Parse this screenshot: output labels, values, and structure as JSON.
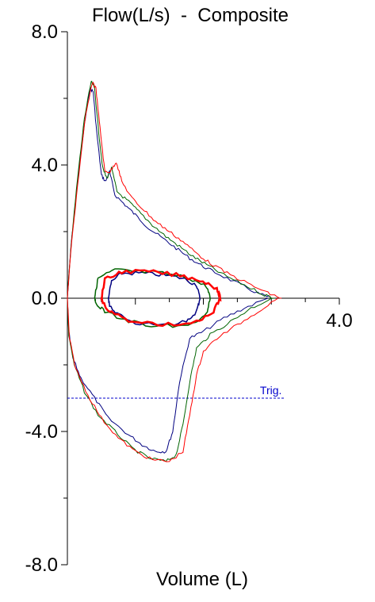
{
  "chart_data": {
    "type": "line",
    "title": "Flow(L/s)  -  Composite",
    "xlabel": "Volume (L)",
    "ylabel": "",
    "xlim": [
      0,
      4.0
    ],
    "ylim": [
      -8.0,
      8.0
    ],
    "y_tick_labels": [
      "8.0",
      "4.0",
      "0.0",
      "-4.0",
      "-8.0"
    ],
    "y_tick_values": [
      8.0,
      4.0,
      0.0,
      -4.0,
      -8.0
    ],
    "x_tick_label": "4.0",
    "x_tick_value": 4.0,
    "grid": false,
    "trigger_line": {
      "label": "Trig.",
      "y": -3.0,
      "x_end": 3.2,
      "color": "#0000cc"
    },
    "colors": {
      "axis": "#000000",
      "trigger": "#0000cc"
    },
    "series": [
      {
        "color": "#000080",
        "expiratory": [
          [
            0,
            0
          ],
          [
            0.05,
            1.5
          ],
          [
            0.15,
            3.5
          ],
          [
            0.25,
            5.2
          ],
          [
            0.33,
            6.3
          ],
          [
            0.38,
            6.2
          ],
          [
            0.43,
            5.0
          ],
          [
            0.5,
            3.7
          ],
          [
            0.56,
            3.5
          ],
          [
            0.62,
            3.8
          ],
          [
            0.7,
            3.1
          ],
          [
            0.85,
            2.8
          ],
          [
            1.0,
            2.5
          ],
          [
            1.2,
            2.1
          ],
          [
            1.4,
            1.8
          ],
          [
            1.6,
            1.5
          ],
          [
            1.8,
            1.2
          ],
          [
            2.0,
            0.95
          ],
          [
            2.2,
            0.75
          ],
          [
            2.5,
            0.45
          ],
          [
            2.8,
            0.15
          ],
          [
            3.0,
            0.0
          ]
        ],
        "inspiratory": [
          [
            0,
            0
          ],
          [
            0.02,
            -1.0
          ],
          [
            0.08,
            -1.8
          ],
          [
            0.2,
            -2.4
          ],
          [
            0.4,
            -3.0
          ],
          [
            0.6,
            -3.6
          ],
          [
            0.9,
            -4.1
          ],
          [
            1.1,
            -4.4
          ],
          [
            1.3,
            -4.6
          ],
          [
            1.45,
            -4.6
          ],
          [
            1.55,
            -4.0
          ],
          [
            1.65,
            -2.5
          ],
          [
            1.8,
            -1.2
          ],
          [
            2.0,
            -1.0
          ],
          [
            2.3,
            -0.6
          ],
          [
            2.6,
            -0.3
          ],
          [
            2.95,
            0.0
          ]
        ],
        "tidal": [
          [
            0.6,
            0.0
          ],
          [
            0.65,
            0.5
          ],
          [
            0.8,
            0.75
          ],
          [
            1.1,
            0.75
          ],
          [
            1.4,
            0.7
          ],
          [
            1.7,
            0.6
          ],
          [
            1.9,
            0.4
          ],
          [
            1.95,
            0.0
          ],
          [
            1.9,
            -0.4
          ],
          [
            1.75,
            -0.7
          ],
          [
            1.4,
            -0.8
          ],
          [
            1.0,
            -0.75
          ],
          [
            0.75,
            -0.5
          ],
          [
            0.62,
            -0.2
          ],
          [
            0.6,
            0.0
          ]
        ]
      },
      {
        "color": "#006400",
        "expiratory": [
          [
            0,
            0
          ],
          [
            0.05,
            1.5
          ],
          [
            0.15,
            3.6
          ],
          [
            0.25,
            5.4
          ],
          [
            0.35,
            6.5
          ],
          [
            0.4,
            6.3
          ],
          [
            0.46,
            5.0
          ],
          [
            0.52,
            3.9
          ],
          [
            0.58,
            3.6
          ],
          [
            0.65,
            3.9
          ],
          [
            0.73,
            3.2
          ],
          [
            0.9,
            2.9
          ],
          [
            1.05,
            2.6
          ],
          [
            1.25,
            2.2
          ],
          [
            1.45,
            1.85
          ],
          [
            1.65,
            1.55
          ],
          [
            1.85,
            1.25
          ],
          [
            2.05,
            1.0
          ],
          [
            2.3,
            0.7
          ],
          [
            2.6,
            0.4
          ],
          [
            2.9,
            0.1
          ],
          [
            3.05,
            0.0
          ]
        ],
        "inspiratory": [
          [
            0,
            0
          ],
          [
            0.02,
            -1.1
          ],
          [
            0.1,
            -2.0
          ],
          [
            0.25,
            -2.8
          ],
          [
            0.45,
            -3.5
          ],
          [
            0.7,
            -4.0
          ],
          [
            0.95,
            -4.5
          ],
          [
            1.2,
            -4.8
          ],
          [
            1.45,
            -4.9
          ],
          [
            1.6,
            -4.7
          ],
          [
            1.7,
            -3.8
          ],
          [
            1.8,
            -2.5
          ],
          [
            1.9,
            -1.5
          ],
          [
            2.1,
            -1.1
          ],
          [
            2.4,
            -0.7
          ],
          [
            2.7,
            -0.3
          ],
          [
            3.0,
            0.0
          ]
        ],
        "tidal": [
          [
            0.4,
            0.0
          ],
          [
            0.45,
            0.6
          ],
          [
            0.7,
            0.85
          ],
          [
            1.0,
            0.8
          ],
          [
            1.4,
            0.75
          ],
          [
            1.8,
            0.6
          ],
          [
            2.05,
            0.35
          ],
          [
            2.1,
            0.0
          ],
          [
            2.05,
            -0.45
          ],
          [
            1.85,
            -0.75
          ],
          [
            1.4,
            -0.85
          ],
          [
            0.9,
            -0.7
          ],
          [
            0.55,
            -0.4
          ],
          [
            0.42,
            -0.15
          ],
          [
            0.4,
            0.0
          ]
        ]
      },
      {
        "color": "#ff0000",
        "expiratory": [
          [
            0,
            0
          ],
          [
            0.05,
            1.4
          ],
          [
            0.15,
            3.4
          ],
          [
            0.27,
            5.5
          ],
          [
            0.37,
            6.5
          ],
          [
            0.42,
            6.3
          ],
          [
            0.48,
            5.1
          ],
          [
            0.55,
            3.8
          ],
          [
            0.63,
            3.8
          ],
          [
            0.72,
            4.1
          ],
          [
            0.8,
            3.5
          ],
          [
            0.95,
            3.0
          ],
          [
            1.1,
            2.7
          ],
          [
            1.3,
            2.3
          ],
          [
            1.5,
            2.0
          ],
          [
            1.7,
            1.7
          ],
          [
            1.9,
            1.35
          ],
          [
            2.1,
            1.05
          ],
          [
            2.35,
            0.75
          ],
          [
            2.65,
            0.45
          ],
          [
            2.95,
            0.15
          ],
          [
            3.15,
            0.0
          ]
        ],
        "inspiratory": [
          [
            0,
            0
          ],
          [
            0.03,
            -1.2
          ],
          [
            0.12,
            -2.1
          ],
          [
            0.3,
            -2.9
          ],
          [
            0.5,
            -3.6
          ],
          [
            0.75,
            -4.2
          ],
          [
            1.0,
            -4.6
          ],
          [
            1.25,
            -4.85
          ],
          [
            1.5,
            -4.9
          ],
          [
            1.7,
            -4.6
          ],
          [
            1.8,
            -3.5
          ],
          [
            1.9,
            -2.3
          ],
          [
            2.0,
            -1.6
          ],
          [
            2.2,
            -1.2
          ],
          [
            2.5,
            -0.8
          ],
          [
            2.8,
            -0.4
          ],
          [
            3.1,
            0.0
          ]
        ],
        "tidal": [
          [
            0.5,
            0.0
          ],
          [
            0.55,
            0.55
          ],
          [
            0.8,
            0.8
          ],
          [
            1.2,
            0.8
          ],
          [
            1.6,
            0.7
          ],
          [
            1.95,
            0.55
          ],
          [
            2.2,
            0.3
          ],
          [
            2.25,
            0.0
          ],
          [
            2.15,
            -0.4
          ],
          [
            1.9,
            -0.7
          ],
          [
            1.4,
            -0.8
          ],
          [
            0.95,
            -0.7
          ],
          [
            0.65,
            -0.45
          ],
          [
            0.52,
            -0.15
          ],
          [
            0.5,
            0.0
          ]
        ]
      }
    ]
  }
}
